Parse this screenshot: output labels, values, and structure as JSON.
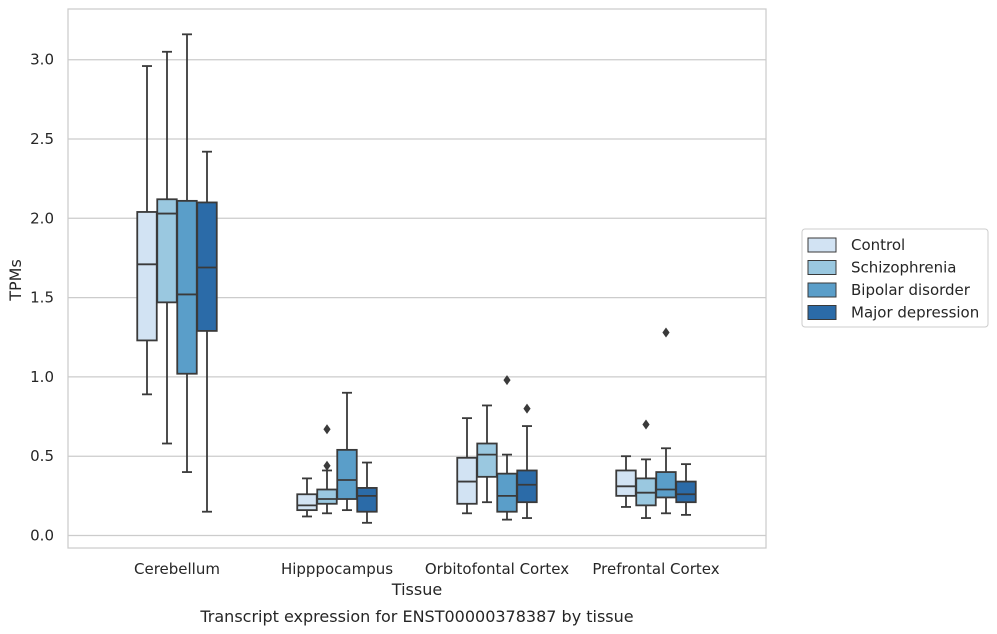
{
  "chart_data": {
    "type": "box",
    "caption": "Transcript expression for ENST00000378387 by tissue",
    "xlabel": "Tissue",
    "ylabel": "TPMs",
    "ylim": [
      -0.07,
      3.32
    ],
    "yticks": [
      0.0,
      0.5,
      1.0,
      1.5,
      2.0,
      2.5,
      3.0
    ],
    "ytick_labels": [
      "0.0",
      "0.5",
      "1.0",
      "1.5",
      "2.0",
      "2.5",
      "3.0"
    ],
    "grid": "horizontal",
    "legend_position": "outside-right",
    "categories": [
      "Cerebellum",
      "Hipppocampus",
      "Orbitofontal Cortex",
      "Prefrontal Cortex"
    ],
    "series": [
      {
        "name": "Control",
        "color": "#d2e3f3",
        "boxes": [
          {
            "whisker_low": 0.89,
            "q1": 1.23,
            "median": 1.71,
            "q3": 2.04,
            "whisker_high": 2.96,
            "outliers": []
          },
          {
            "whisker_low": 0.12,
            "q1": 0.16,
            "median": 0.19,
            "q3": 0.26,
            "whisker_high": 0.36,
            "outliers": []
          },
          {
            "whisker_low": 0.14,
            "q1": 0.2,
            "median": 0.34,
            "q3": 0.49,
            "whisker_high": 0.74,
            "outliers": []
          },
          {
            "whisker_low": 0.18,
            "q1": 0.25,
            "median": 0.31,
            "q3": 0.41,
            "whisker_high": 0.5,
            "outliers": []
          }
        ]
      },
      {
        "name": "Schizophrenia",
        "color": "#9ac8e0",
        "boxes": [
          {
            "whisker_low": 0.58,
            "q1": 1.47,
            "median": 2.03,
            "q3": 2.12,
            "whisker_high": 3.05,
            "outliers": []
          },
          {
            "whisker_low": 0.14,
            "q1": 0.2,
            "median": 0.23,
            "q3": 0.29,
            "whisker_high": 0.41,
            "outliers": [
              0.67,
              0.44
            ]
          },
          {
            "whisker_low": 0.21,
            "q1": 0.37,
            "median": 0.51,
            "q3": 0.58,
            "whisker_high": 0.82,
            "outliers": []
          },
          {
            "whisker_low": 0.11,
            "q1": 0.19,
            "median": 0.27,
            "q3": 0.36,
            "whisker_high": 0.48,
            "outliers": [
              0.7
            ]
          }
        ]
      },
      {
        "name": "Bipolar disorder",
        "color": "#5a9ec9",
        "boxes": [
          {
            "whisker_low": 0.4,
            "q1": 1.02,
            "median": 1.52,
            "q3": 2.11,
            "whisker_high": 3.16,
            "outliers": []
          },
          {
            "whisker_low": 0.16,
            "q1": 0.23,
            "median": 0.35,
            "q3": 0.54,
            "whisker_high": 0.9,
            "outliers": []
          },
          {
            "whisker_low": 0.1,
            "q1": 0.15,
            "median": 0.25,
            "q3": 0.39,
            "whisker_high": 0.51,
            "outliers": [
              0.98
            ]
          },
          {
            "whisker_low": 0.14,
            "q1": 0.24,
            "median": 0.29,
            "q3": 0.4,
            "whisker_high": 0.55,
            "outliers": [
              1.28
            ]
          }
        ]
      },
      {
        "name": "Major depression",
        "color": "#2b6ba8",
        "boxes": [
          {
            "whisker_low": 0.15,
            "q1": 1.29,
            "median": 1.69,
            "q3": 2.1,
            "whisker_high": 2.42,
            "outliers": []
          },
          {
            "whisker_low": 0.08,
            "q1": 0.15,
            "median": 0.25,
            "q3": 0.3,
            "whisker_high": 0.46,
            "outliers": []
          },
          {
            "whisker_low": 0.11,
            "q1": 0.21,
            "median": 0.32,
            "q3": 0.41,
            "whisker_high": 0.69,
            "outliers": [
              0.8
            ]
          },
          {
            "whisker_low": 0.13,
            "q1": 0.21,
            "median": 0.26,
            "q3": 0.34,
            "whisker_high": 0.45,
            "outliers": []
          }
        ]
      }
    ]
  }
}
